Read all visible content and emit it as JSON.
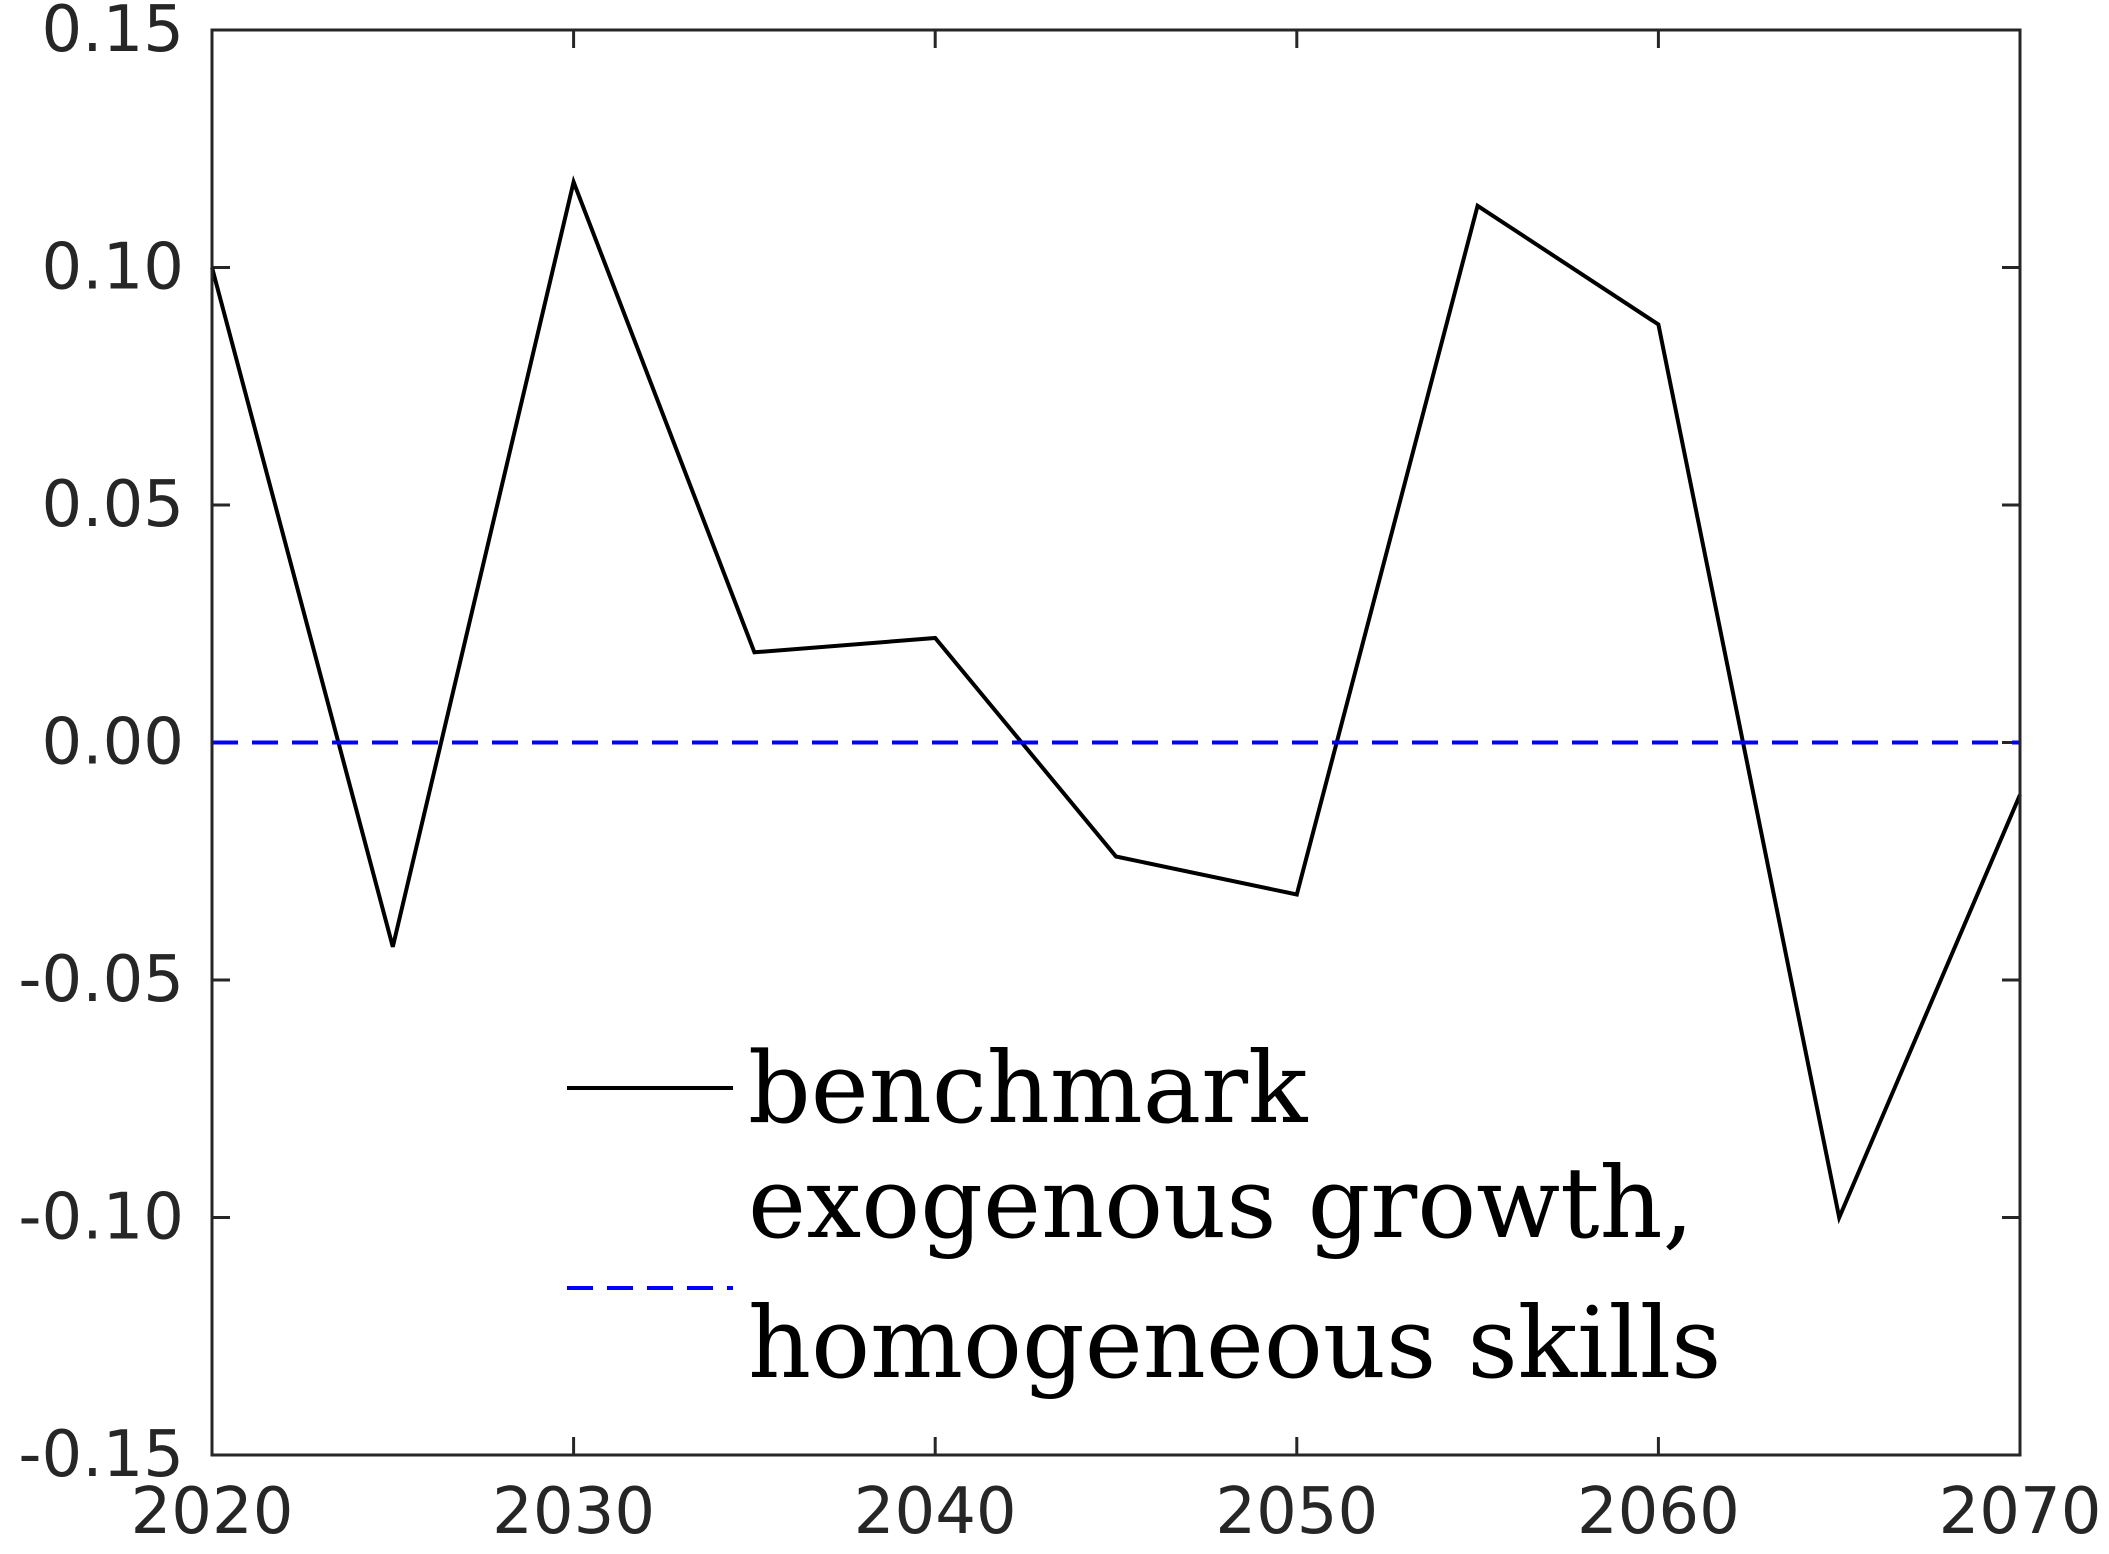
{
  "chart_data": {
    "type": "line",
    "title": "",
    "xlabel": "",
    "ylabel": "",
    "xlim": [
      2020,
      2070
    ],
    "ylim": [
      -0.15,
      0.15
    ],
    "x_ticks": [
      2020,
      2030,
      2040,
      2050,
      2060,
      2070
    ],
    "x_tick_labels": [
      "2020",
      "2030",
      "2040",
      "2050",
      "2060",
      "2070"
    ],
    "y_ticks": [
      0.15,
      0.1,
      0.05,
      0.0,
      -0.05,
      -0.1,
      -0.15
    ],
    "y_tick_labels": [
      "0.15",
      "0.10",
      "0.05",
      "0.00",
      "-0.05",
      "-0.10",
      "-0.15"
    ],
    "grid": false,
    "legend_position": "bottom-center",
    "series": [
      {
        "name": "benchmark",
        "style": "solid",
        "color": "#000000",
        "x": [
          2020,
          2025,
          2030,
          2035,
          2040,
          2045,
          2050,
          2055,
          2060,
          2065,
          2070
        ],
        "y": [
          0.1,
          -0.043,
          0.118,
          0.019,
          0.022,
          -0.024,
          -0.032,
          0.113,
          0.088,
          -0.1,
          -0.011
        ]
      },
      {
        "name": "exogenous growth, homogeneous skills",
        "style": "dashed",
        "color": "#0000ff",
        "x": [
          2020,
          2070
        ],
        "y": [
          0.0,
          0.0
        ]
      }
    ],
    "legend": {
      "entries": [
        {
          "lines": [
            "benchmark"
          ]
        },
        {
          "lines": [
            "exogenous growth,",
            "homogeneous skills"
          ]
        }
      ]
    }
  }
}
